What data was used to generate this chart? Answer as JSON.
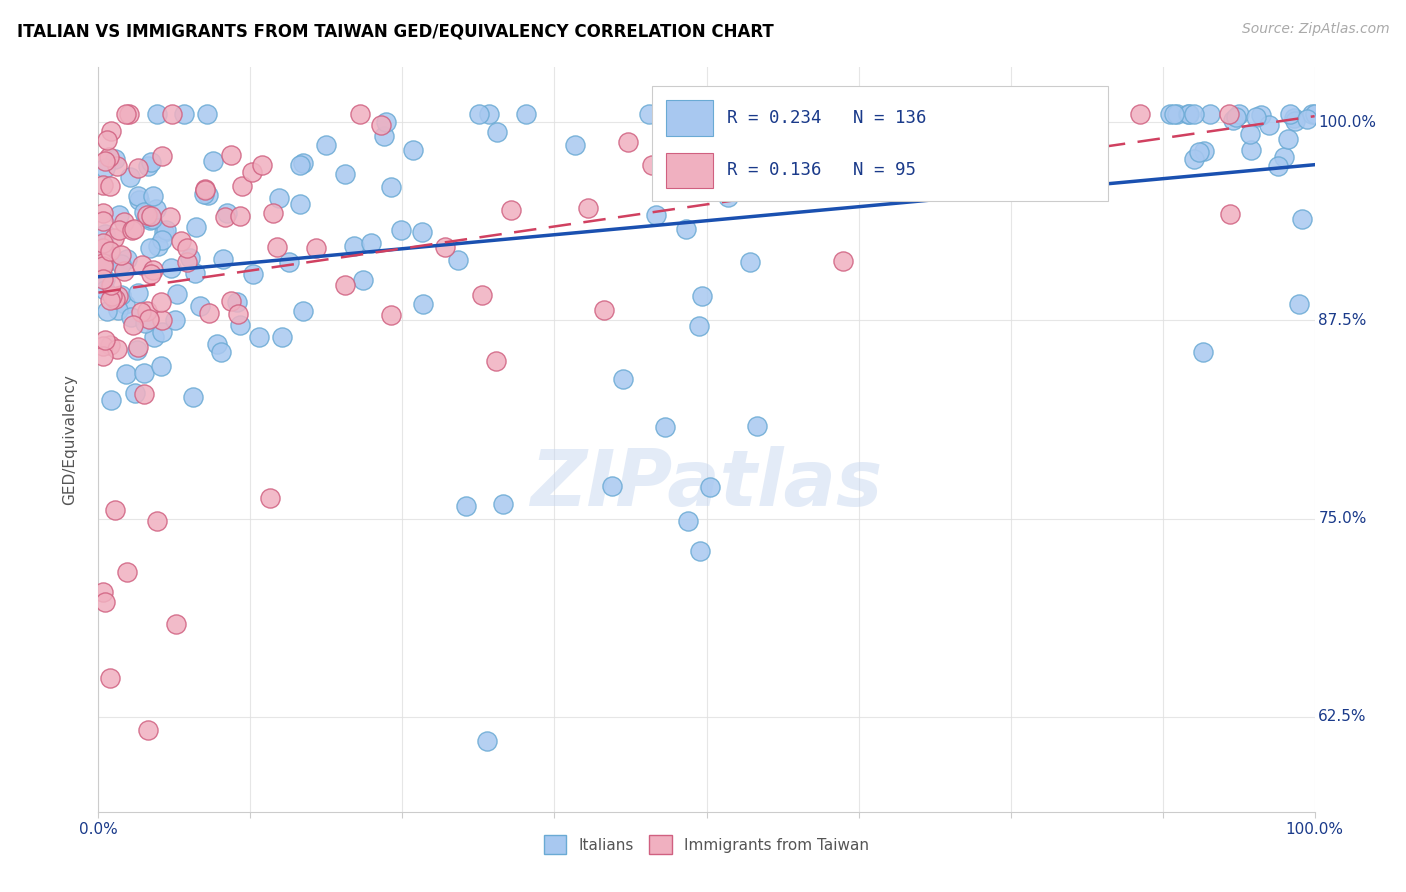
{
  "title": "ITALIAN VS IMMIGRANTS FROM TAIWAN GED/EQUIVALENCY CORRELATION CHART",
  "source": "Source: ZipAtlas.com",
  "ylabel": "GED/Equivalency",
  "watermark": "ZIPatlas",
  "ytick_labels": [
    "100.0%",
    "87.5%",
    "75.0%",
    "62.5%"
  ],
  "ytick_values": [
    1.0,
    0.875,
    0.75,
    0.625
  ],
  "xmin": 0.0,
  "xmax": 1.0,
  "ymin": 0.565,
  "ymax": 1.035,
  "blue_R": 0.234,
  "blue_N": 136,
  "pink_R": 0.136,
  "pink_N": 95,
  "blue_color": "#a8c8f0",
  "blue_edge": "#6aaad4",
  "pink_color": "#f0b0c0",
  "pink_edge": "#d06080",
  "blue_line_color": "#1a50b0",
  "pink_line_color": "#d04060",
  "legend_text_color": "#1a3a8a",
  "title_color": "#000000",
  "grid_color": "#e0e0e0",
  "axis_label_color": "#1a3a8a"
}
